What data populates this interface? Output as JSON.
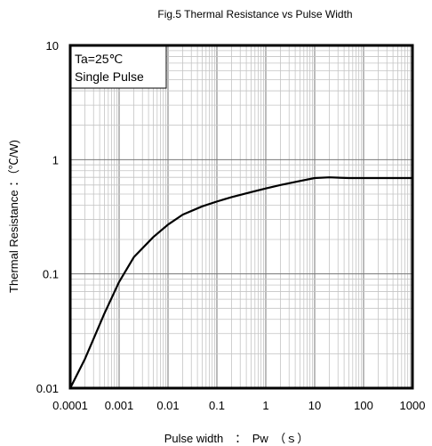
{
  "chart_data": {
    "type": "line",
    "title": "Fig.5 Thermal Resistance vs Pulse Width",
    "xlabel": "Pulse width　：　Pw　（ｓ）",
    "ylabel": "Thermal  Resistance ：（℃/W)",
    "x_scale": "log",
    "y_scale": "log",
    "xlim": [
      0.0001,
      1000
    ],
    "ylim": [
      0.01,
      10
    ],
    "grid": true,
    "x_ticks": [
      "0.0001",
      "0.001",
      "0.01",
      "0.1",
      "1",
      "10",
      "100",
      "1000"
    ],
    "y_ticks": [
      "0.01",
      "0.1",
      "1",
      "10"
    ],
    "annotations": [
      "Ta=25℃",
      "Single Pulse"
    ],
    "series": [
      {
        "x": [
          0.0001,
          0.0002,
          0.0005,
          0.001,
          0.002,
          0.005,
          0.01,
          0.02,
          0.05,
          0.1,
          0.2,
          0.5,
          1,
          2,
          5,
          10,
          20,
          50,
          100,
          1000
        ],
        "y": [
          0.01,
          0.018,
          0.045,
          0.085,
          0.14,
          0.21,
          0.27,
          0.33,
          0.39,
          0.43,
          0.47,
          0.52,
          0.56,
          0.6,
          0.65,
          0.69,
          0.7,
          0.69,
          0.69,
          0.69
        ]
      }
    ]
  }
}
